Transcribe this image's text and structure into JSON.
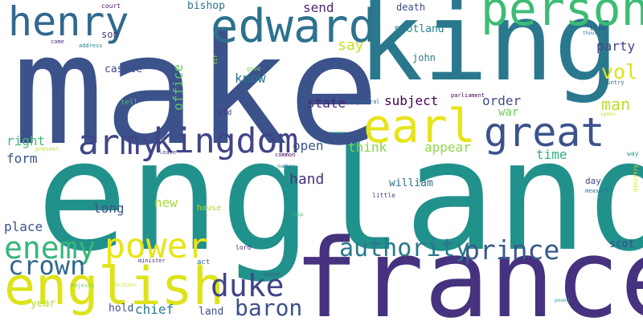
{
  "words": [
    {
      "text": "england",
      "color": "#21918c"
    },
    {
      "text": "make",
      "color": "#3b528b"
    },
    {
      "text": "king",
      "color": "#2a788e"
    },
    {
      "text": "france",
      "color": "#46327e"
    },
    {
      "text": "english",
      "color": "#dde318"
    },
    {
      "text": "person",
      "color": "#3dbc74"
    },
    {
      "text": "edward",
      "color": "#2c728e"
    },
    {
      "text": "henry",
      "color": "#30698e"
    },
    {
      "text": "earl",
      "color": "#e6e419"
    },
    {
      "text": "great",
      "color": "#3b528b"
    },
    {
      "text": "kingdom",
      "color": "#414487"
    },
    {
      "text": "army",
      "color": "#404688"
    },
    {
      "text": "power",
      "color": "#e8e419"
    },
    {
      "text": "enemy",
      "color": "#35b779"
    },
    {
      "text": "crown",
      "color": "#31678e"
    },
    {
      "text": "duke",
      "color": "#414487"
    },
    {
      "text": "prince",
      "color": "#38598c"
    },
    {
      "text": "authority",
      "color": "#2a788e"
    },
    {
      "text": "baron",
      "color": "#3b528b"
    },
    {
      "text": "vol",
      "color": "#dde318"
    },
    {
      "text": "man",
      "color": "#bddf26"
    },
    {
      "text": "party",
      "color": "#414487"
    },
    {
      "text": "send",
      "color": "#482878"
    },
    {
      "text": "say",
      "color": "#c5e021"
    },
    {
      "text": "scotland",
      "color": "#26828e"
    },
    {
      "text": "bishop",
      "color": "#2c728e"
    },
    {
      "text": "death",
      "color": "#3e4a89"
    },
    {
      "text": "court",
      "color": "#481b6d"
    },
    {
      "text": "office",
      "color": "#5ec962"
    },
    {
      "text": "son",
      "color": "#443983"
    },
    {
      "text": "know",
      "color": "#2a788e"
    },
    {
      "text": "castle",
      "color": "#3e4989"
    },
    {
      "text": "john",
      "color": "#2a788e"
    },
    {
      "text": "subject",
      "color": "#440154"
    },
    {
      "text": "state",
      "color": "#482475"
    },
    {
      "text": "order",
      "color": "#3e4c8a"
    },
    {
      "text": "war",
      "color": "#6ece58"
    },
    {
      "text": "right",
      "color": "#3dbc74"
    },
    {
      "text": "form",
      "color": "#3b528b"
    },
    {
      "text": "open",
      "color": "#3b528b"
    },
    {
      "text": "think",
      "color": "#84d44b"
    },
    {
      "text": "appear",
      "color": "#90d743"
    },
    {
      "text": "time",
      "color": "#2db27d"
    },
    {
      "text": "hand",
      "color": "#46337f"
    },
    {
      "text": "william",
      "color": "#2d708e"
    },
    {
      "text": "new",
      "color": "#a5db36"
    },
    {
      "text": "long",
      "color": "#3b528b"
    },
    {
      "text": "place",
      "color": "#3b528b"
    },
    {
      "text": "scot",
      "color": "#404688"
    },
    {
      "text": "day",
      "color": "#404688"
    },
    {
      "text": "year",
      "color": "#b5de2b"
    },
    {
      "text": "hold",
      "color": "#3b528b"
    },
    {
      "text": "chief",
      "color": "#2a788e"
    },
    {
      "text": "land",
      "color": "#3b528b"
    },
    {
      "text": "lord",
      "color": "#482878"
    },
    {
      "text": "act",
      "color": "#31688e"
    },
    {
      "text": "minister",
      "color": "#46327e"
    },
    {
      "text": "house",
      "color": "#aadc32"
    },
    {
      "text": "majesty",
      "color": "#7ad151"
    },
    {
      "text": "little",
      "color": "#3e4a89"
    },
    {
      "text": "queen",
      "color": "#355f8d"
    },
    {
      "text": "ship",
      "color": "#35b779"
    },
    {
      "text": "number",
      "color": "#2a788e"
    },
    {
      "text": "common",
      "color": "#440154"
    },
    {
      "text": "leave",
      "color": "#3e4989"
    },
    {
      "text": "present",
      "color": "#b5de2b"
    },
    {
      "text": "tell",
      "color": "#4ac16d"
    },
    {
      "text": "old",
      "color": "#46327e"
    },
    {
      "text": "general",
      "color": "#31688e"
    },
    {
      "text": "parliament",
      "color": "#440154"
    },
    {
      "text": "good",
      "color": "#7ad151"
    },
    {
      "text": "like",
      "color": "#3b528b"
    },
    {
      "text": "thousand",
      "color": "#2a788e"
    },
    {
      "text": "country",
      "color": "#31688e"
    },
    {
      "text": "spain",
      "color": "#bddf26"
    },
    {
      "text": "way",
      "color": "#1f9e89"
    },
    {
      "text": "measure",
      "color": "#2c728e"
    },
    {
      "text": "pound",
      "color": "#1f9e89"
    },
    {
      "text": "britain",
      "color": "#c2df23"
    },
    {
      "text": "address",
      "color": "#26828e"
    },
    {
      "text": "come",
      "color": "#482878"
    },
    {
      "text": "sir",
      "color": "#9fda3a"
    },
    {
      "text": "ministry",
      "color": "#d8e219"
    }
  ]
}
